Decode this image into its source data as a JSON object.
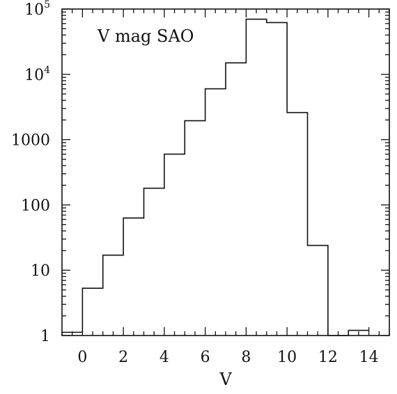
{
  "chart_data": {
    "type": "histogram",
    "title": "V mag SAO",
    "xlabel": "V",
    "ylabel": "",
    "xlim": [
      -1,
      15
    ],
    "ylim": [
      1,
      100000
    ],
    "yscale": "log",
    "x_ticks": [
      0,
      2,
      4,
      6,
      8,
      10,
      12,
      14
    ],
    "x_tick_labels": [
      "0",
      "2",
      "4",
      "6",
      "8",
      "10",
      "12",
      "14"
    ],
    "y_ticks": [
      1,
      10,
      100,
      1000,
      10000,
      100000
    ],
    "y_tick_labels": [
      {
        "text": "1"
      },
      {
        "text": "10"
      },
      {
        "text": "100"
      },
      {
        "text": "1000"
      },
      {
        "text": "10",
        "sup": "4"
      },
      {
        "text": "10",
        "sup": "5"
      }
    ],
    "bin_edges": [
      -1,
      0,
      1,
      2,
      3,
      4,
      5,
      6,
      7,
      8,
      9,
      10,
      11,
      12,
      13,
      14
    ],
    "counts": [
      1.12,
      5.3,
      17,
      63,
      180,
      600,
      1950,
      6000,
      15000,
      70000,
      62000,
      2600,
      24,
      1,
      1.2
    ],
    "x_minor_step": 0.5,
    "grid": false
  }
}
